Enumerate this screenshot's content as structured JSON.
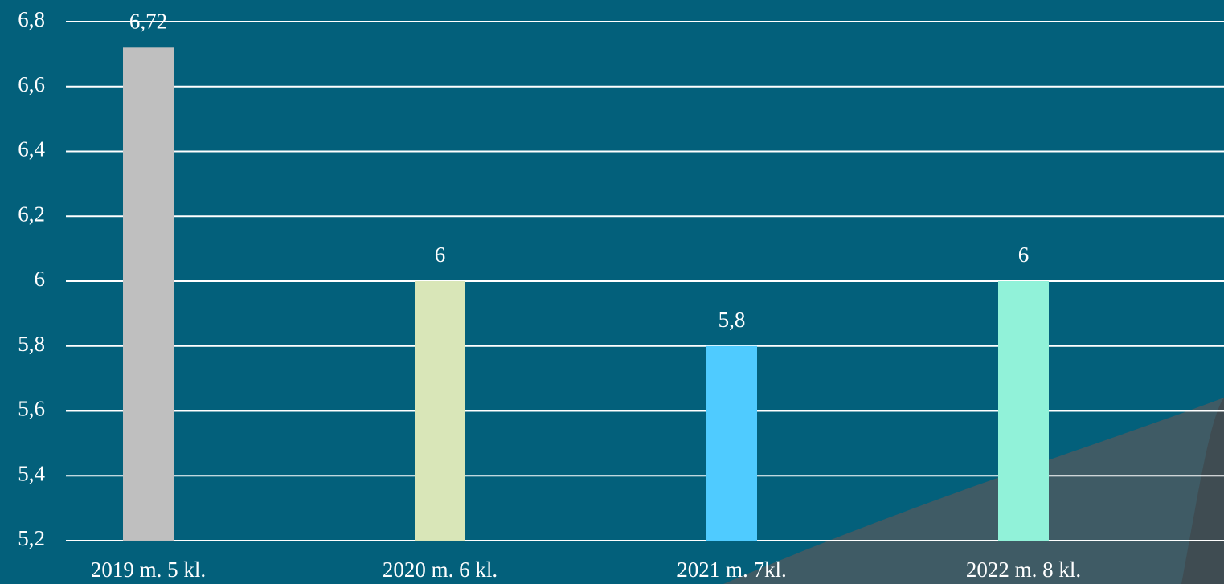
{
  "chart_data": {
    "type": "bar",
    "categories": [
      "2019 m. 5 kl.",
      "2020 m. 6 kl.",
      "2021 m. 7kl.",
      "2022 m. 8 kl."
    ],
    "values": [
      6.72,
      6,
      5.8,
      6
    ],
    "value_labels": [
      "6,72",
      "6",
      "5,8",
      "6"
    ],
    "colors": [
      "#bfbfbf",
      "#d9e6b8",
      "#4fcbff",
      "#91f2d9"
    ],
    "ylim": [
      5.2,
      6.8
    ],
    "yticks": [
      {
        "value": 5.2,
        "label": "5,2"
      },
      {
        "value": 5.4,
        "label": "5,4"
      },
      {
        "value": 5.6,
        "label": "5,6"
      },
      {
        "value": 5.8,
        "label": "5,8"
      },
      6,
      {
        "value": 6.2,
        "label": "6,2"
      },
      {
        "value": 6.4,
        "label": "6,4"
      },
      {
        "value": 6.6,
        "label": "6,6"
      },
      {
        "value": 6.8,
        "label": "6,8"
      }
    ],
    "grid": true
  }
}
